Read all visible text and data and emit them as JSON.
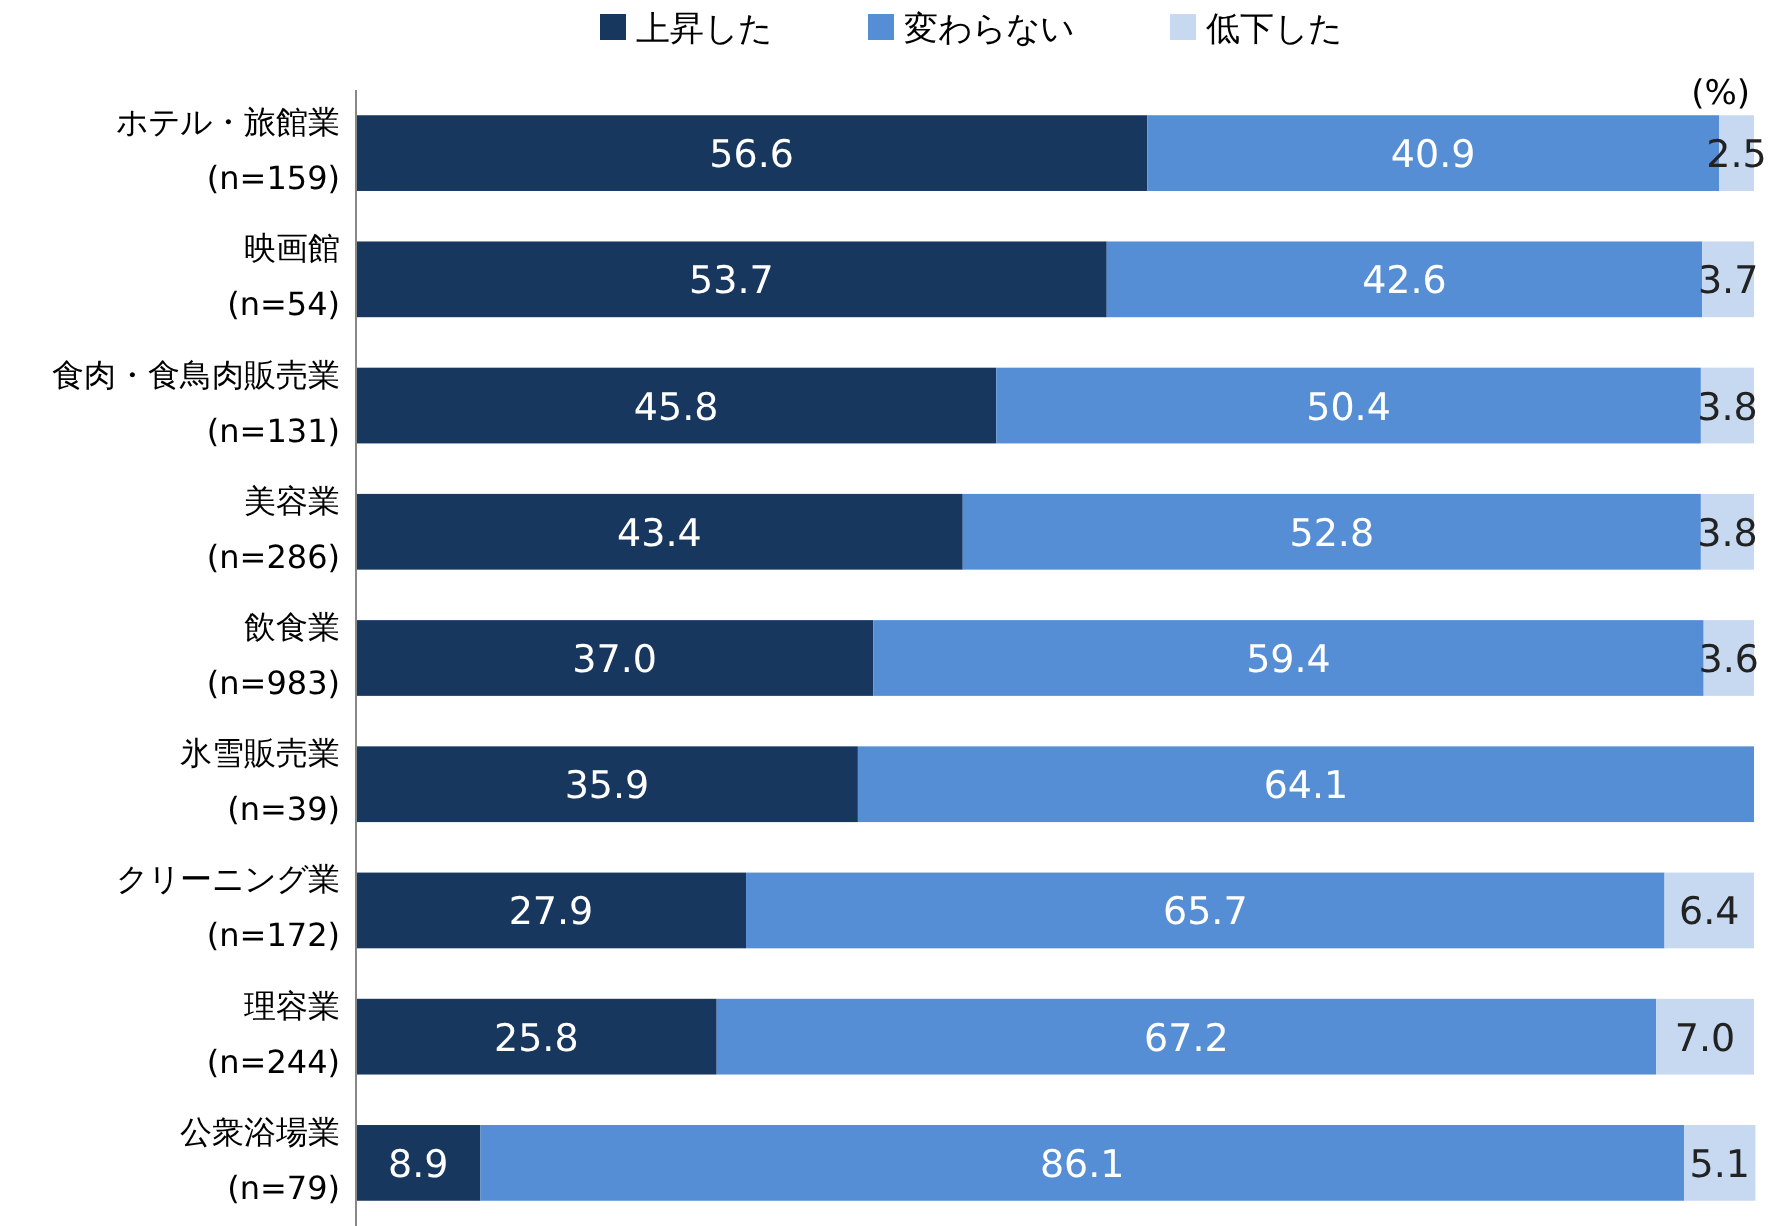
{
  "chart_data": {
    "type": "bar",
    "orientation": "horizontal",
    "stacked": true,
    "legend": "top",
    "tick_labels": "y",
    "xlim": [
      0,
      100
    ],
    "categories": [
      "ホテル・旅館業\n(n=159)",
      "映画館\n(n=54)",
      "食肉・食鳥肉販売業\n(n=131)",
      "美容業\n(n=286)",
      "飲食業\n(n=983)",
      "氷雪販売業\n(n=39)",
      "クリーニング業\n(n=172)",
      "理容業\n(n=244)",
      "公衆浴場業\n(n=79)"
    ],
    "series": [
      {
        "name": "上昇した",
        "color": "#17375e",
        "values": [
          56.6,
          53.7,
          45.8,
          43.4,
          37.0,
          35.9,
          27.9,
          25.8,
          8.9
        ],
        "value_labels": [
          "56.6",
          "53.7",
          "45.8",
          "43.4",
          "37.0",
          "35.9",
          "27.9",
          "25.8",
          "8.9"
        ]
      },
      {
        "name": "変わらない",
        "color": "#558ed5",
        "values": [
          40.9,
          42.6,
          50.4,
          52.8,
          59.4,
          64.1,
          65.7,
          67.2,
          86.1
        ],
        "value_labels": [
          "40.9",
          "42.6",
          "50.4",
          "52.8",
          "59.4",
          "64.1",
          "65.7",
          "67.2",
          "86.1"
        ]
      },
      {
        "name": "低下した",
        "color": "#c6d9f1",
        "values": [
          2.5,
          3.7,
          3.8,
          3.8,
          3.6,
          0,
          6.4,
          7.0,
          5.1
        ],
        "value_labels": [
          "2.5",
          "3.7",
          "3.8",
          "3.8",
          "3.6",
          null,
          "6.4",
          "7.0",
          "5.1"
        ]
      }
    ],
    "annotations": [
      "(%)"
    ]
  }
}
